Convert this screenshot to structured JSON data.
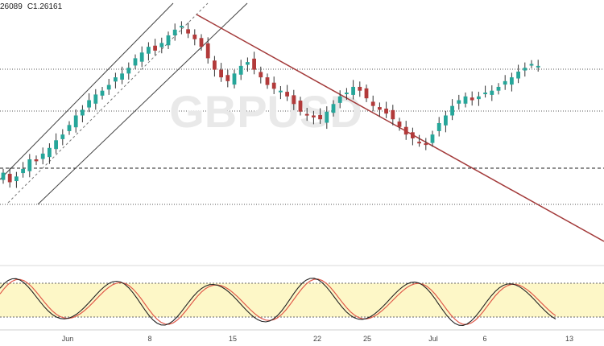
{
  "ohlc_readout": {
    "prev_value": "26089",
    "close_label": "C1.26161"
  },
  "colors": {
    "bull": "#26a69a",
    "bear": "#b23a3a",
    "wick": "#333333",
    "channel": "#444444",
    "trendline": "#a33a3a",
    "stoch_band": "#fdf7c7",
    "stoch_k": "#222222",
    "stoch_d": "#e05a4a"
  },
  "chart_data": {
    "type": "candlestick",
    "title": "",
    "xlabel": "",
    "ylabel": "",
    "x_ticks": [
      "Jun",
      "8",
      "15",
      "22",
      "25",
      "Jul",
      "6",
      "13"
    ],
    "watermark": "GBPUSD",
    "candles_close_trend": [
      0.2,
      0.15,
      0.18,
      0.22,
      0.27,
      0.26,
      0.3,
      0.33,
      0.37,
      0.4,
      0.45,
      0.5,
      0.53,
      0.58,
      0.61,
      0.63,
      0.66,
      0.7,
      0.72,
      0.75,
      0.8,
      0.83,
      0.86,
      0.84,
      0.88,
      0.92,
      0.95,
      0.97,
      0.93,
      0.9,
      0.86,
      0.8,
      0.74,
      0.7,
      0.68,
      0.72,
      0.76,
      0.78,
      0.74,
      0.7,
      0.66,
      0.64,
      0.63,
      0.6,
      0.56,
      0.52,
      0.5,
      0.49,
      0.48,
      0.52,
      0.56,
      0.6,
      0.62,
      0.65,
      0.63,
      0.59,
      0.55,
      0.53,
      0.51,
      0.48,
      0.44,
      0.4,
      0.38,
      0.36,
      0.35,
      0.4,
      0.46,
      0.5,
      0.55,
      0.58,
      0.6,
      0.58,
      0.6,
      0.62,
      0.63,
      0.65,
      0.68,
      0.7,
      0.73,
      0.75,
      0.77,
      0.76
    ]
  }
}
